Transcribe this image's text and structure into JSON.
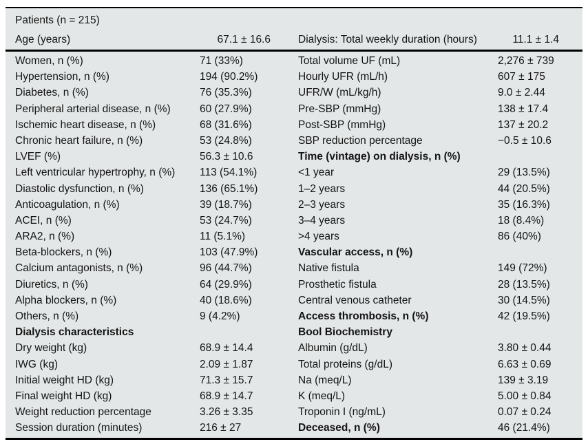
{
  "colors": {
    "table_background": "#e3e7e7",
    "rule_color": "#000000",
    "text_color": "#141414"
  },
  "table": {
    "title": "Patients (n = 215)",
    "header": {
      "left_label": "Age (years)",
      "left_value": "67.1 ± 16.6",
      "right_label": "Dialysis: Total weekly duration (hours)",
      "right_value": "11.1 ± 1.4"
    },
    "rows": [
      {
        "l": "Women, n (%)",
        "lv": "71 (33%)",
        "lb": false,
        "r": "Total volume UF (mL)",
        "rv": "2,276 ± 739",
        "rb": false
      },
      {
        "l": "Hypertension, n (%)",
        "lv": "194 (90.2%)",
        "lb": false,
        "r": "Hourly UFR (mL/h)",
        "rv": "607 ± 175",
        "rb": false
      },
      {
        "l": "Diabetes, n (%)",
        "lv": "76 (35.3%)",
        "lb": false,
        "r": "UFR/W (mL/kg/h)",
        "rv": "9.0 ± 2.44",
        "rb": false
      },
      {
        "l": "Peripheral arterial disease, n (%)",
        "lv": "60 (27.9%)",
        "lb": false,
        "r": "Pre-SBP (mmHg)",
        "rv": "138 ± 17.4",
        "rb": false
      },
      {
        "l": "Ischemic heart disease, n (%)",
        "lv": "68 (31.6%)",
        "lb": false,
        "r": "Post-SBP (mmHg)",
        "rv": "137 ± 20.2",
        "rb": false
      },
      {
        "l": "Chronic heart failure, n (%)",
        "lv": "53 (24.8%)",
        "lb": false,
        "r": "SBP reduction percentage",
        "rv": "−0.5 ± 10.6",
        "rb": false
      },
      {
        "l": "LVEF (%)",
        "lv": "56.3 ± 10.6",
        "lb": false,
        "r": "Time (vintage) on dialysis, n (%)",
        "rv": "",
        "rb": true
      },
      {
        "l": "Left ventricular hypertrophy, n (%)",
        "lv": "113 (54.1%)",
        "lb": false,
        "r": "<1 year",
        "rv": "29 (13.5%)",
        "rb": false
      },
      {
        "l": "Diastolic dysfunction, n (%)",
        "lv": "136 (65.1%)",
        "lb": false,
        "r": "1–2 years",
        "rv": "44 (20.5%)",
        "rb": false
      },
      {
        "l": "Anticoagulation, n (%)",
        "lv": "39 (18.7%)",
        "lb": false,
        "r": "2–3 years",
        "rv": "35 (16.3%)",
        "rb": false
      },
      {
        "l": "ACEI, n (%)",
        "lv": "53 (24.7%)",
        "lb": false,
        "r": "3–4 years",
        "rv": "18 (8.4%)",
        "rb": false
      },
      {
        "l": "ARA2, n (%)",
        "lv": "11 (5.1%)",
        "lb": false,
        "r": ">4 years",
        "rv": "86 (40%)",
        "rb": false
      },
      {
        "l": "Beta-blockers, n (%)",
        "lv": "103 (47.9%)",
        "lb": false,
        "r": "Vascular access, n (%)",
        "rv": "",
        "rb": true
      },
      {
        "l": "Calcium antagonists, n (%)",
        "lv": "96 (44.7%)",
        "lb": false,
        "r": "Native fistula",
        "rv": "149 (72%)",
        "rb": false
      },
      {
        "l": "Diuretics, n (%)",
        "lv": "64 (29.9%)",
        "lb": false,
        "r": "Prosthetic fistula",
        "rv": "28 (13.5%)",
        "rb": false
      },
      {
        "l": "Alpha blockers, n (%)",
        "lv": "40 (18.6%)",
        "lb": false,
        "r": "Central venous catheter",
        "rv": "30 (14.5%)",
        "rb": false
      },
      {
        "l": "Others, n (%)",
        "lv": "9 (4.2%)",
        "lb": false,
        "r": "Access thrombosis, n (%)",
        "rv": "42 (19.5%)",
        "rb": true
      },
      {
        "l": "Dialysis characteristics",
        "lv": "",
        "lb": true,
        "r": "Bool Biochemistry",
        "rv": "",
        "rb": true
      },
      {
        "l": "Dry weight (kg)",
        "lv": "68.9 ± 14.4",
        "lb": false,
        "r": "Albumin (g/dL)",
        "rv": "3.80 ± 0.44",
        "rb": false
      },
      {
        "l": "IWG (kg)",
        "lv": "2.09 ± 1.87",
        "lb": false,
        "r": "Total proteins (g/dL)",
        "rv": "6.63 ± 0.69",
        "rb": false
      },
      {
        "l": "Initial weight HD (kg)",
        "lv": "71.3 ± 15.7",
        "lb": false,
        "r": "Na (meq/L)",
        "rv": "139 ± 3.19",
        "rb": false
      },
      {
        "l": "Final weight HD (kg)",
        "lv": "68.9 ± 14.7",
        "lb": false,
        "r": "K (meq/L)",
        "rv": "5.00 ± 0.84",
        "rb": false
      },
      {
        "l": "Weight reduction percentage",
        "lv": "3.26 ± 3.35",
        "lb": false,
        "r": "Troponin I (ng/mL)",
        "rv": "0.07 ± 0.24",
        "rb": false
      },
      {
        "l": "Session duration (minutes)",
        "lv": "216 ± 27",
        "lb": false,
        "r": "Deceased, n (%)",
        "rv": "46 (21.4%)",
        "rb": true
      }
    ]
  }
}
